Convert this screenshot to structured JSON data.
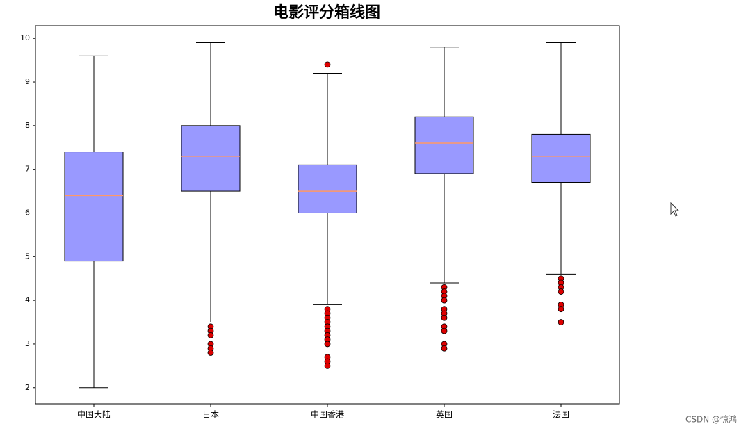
{
  "chart_data": {
    "type": "box",
    "title": "电影评分箱线图",
    "categories": [
      "中国大陆",
      "日本",
      "中国香港",
      "英国",
      "法国"
    ],
    "boxes": [
      {
        "whislo": 2.0,
        "q1": 4.9,
        "med": 6.4,
        "q3": 7.4,
        "whishi": 9.6,
        "fliers": []
      },
      {
        "whislo": 3.5,
        "q1": 6.5,
        "med": 7.3,
        "q3": 8.0,
        "whishi": 9.9,
        "fliers": [
          3.4,
          3.3,
          3.2,
          3.0,
          2.9,
          2.8
        ]
      },
      {
        "whislo": 3.9,
        "q1": 6.0,
        "med": 6.5,
        "q3": 7.1,
        "whishi": 9.2,
        "fliers": [
          9.4,
          3.8,
          3.7,
          3.6,
          3.5,
          3.4,
          3.3,
          3.2,
          3.1,
          3.0,
          2.7,
          2.6,
          2.5
        ]
      },
      {
        "whislo": 4.4,
        "q1": 6.9,
        "med": 7.6,
        "q3": 8.2,
        "whishi": 9.8,
        "fliers": [
          4.3,
          4.2,
          4.1,
          4.0,
          3.8,
          3.7,
          3.6,
          3.4,
          3.3,
          3.0,
          2.9
        ]
      },
      {
        "whislo": 4.6,
        "q1": 6.7,
        "med": 7.3,
        "q3": 7.8,
        "whishi": 9.9,
        "fliers": [
          4.5,
          4.4,
          4.3,
          4.2,
          3.9,
          3.8,
          3.5
        ]
      }
    ],
    "box_color": "#9999ff",
    "median_color": "#ff9966",
    "flier_color": "#dd0000",
    "ylim": [
      1.63,
      10.29
    ],
    "yticks": [
      2,
      3,
      4,
      5,
      6,
      7,
      8,
      9,
      10
    ]
  },
  "watermark": "CSDN @惊鸿"
}
